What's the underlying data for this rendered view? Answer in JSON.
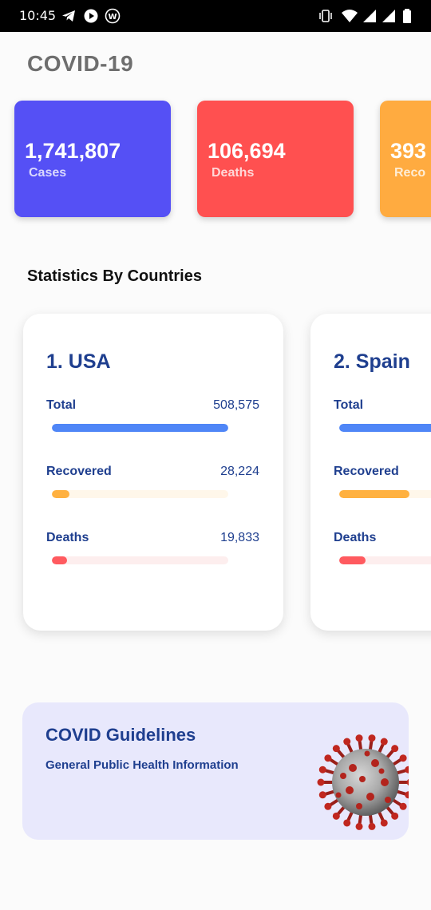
{
  "status_bar": {
    "time": "10:45",
    "left_icons": [
      "telegram-icon",
      "play-icon",
      "w-app-icon"
    ],
    "right_icons": [
      "vibrate-icon",
      "wifi-icon",
      "signal-icon",
      "signal-icon",
      "battery-icon"
    ]
  },
  "app": {
    "title": "COVID-19"
  },
  "summary": [
    {
      "value": "1,741,807",
      "label": "Cases",
      "color": "#5550f5"
    },
    {
      "value": "106,694",
      "label": "Deaths",
      "color": "#ff5050"
    },
    {
      "value": "393",
      "label": "Reco",
      "color": "#ffab40"
    }
  ],
  "countries_section": {
    "title": "Statistics By Countries"
  },
  "countries": [
    {
      "name": "1. USA",
      "stats": [
        {
          "label": "Total",
          "value": "508,575",
          "fraction": 1.0,
          "color": "#4f86f7",
          "track": "#eaf0fd"
        },
        {
          "label": "Recovered",
          "value": "28,224",
          "fraction": 0.1,
          "color": "#ffb140",
          "track": "#fff7ea"
        },
        {
          "label": "Deaths",
          "value": "19,833",
          "fraction": 0.085,
          "color": "#ff5a5f",
          "track": "#fdeeee"
        }
      ]
    },
    {
      "name": "2. Spain",
      "stats": [
        {
          "label": "Total",
          "value": "",
          "fraction": 1.0,
          "color": "#4f86f7",
          "track": "#eaf0fd"
        },
        {
          "label": "Recovered",
          "value": "",
          "fraction": 0.4,
          "color": "#ffb140",
          "track": "#fff7ea"
        },
        {
          "label": "Deaths",
          "value": "",
          "fraction": 0.15,
          "color": "#ff5a5f",
          "track": "#fdeeee"
        }
      ]
    }
  ],
  "guidelines": {
    "title": "COVID Guidelines",
    "subtitle": "General Public Health Information",
    "image": "coronavirus-icon",
    "background": "#e8e8fc"
  }
}
